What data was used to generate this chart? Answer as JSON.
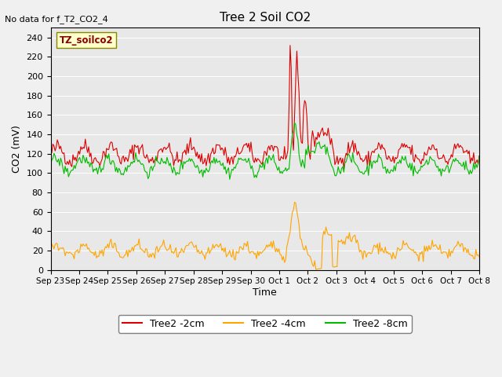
{
  "title": "Tree 2 Soil CO2",
  "top_left_text": "No data for f_T2_CO2_4",
  "ylabel": "CO2 (mV)",
  "xlabel": "Time",
  "box_label": "TZ_soilco2",
  "ylim": [
    0,
    250
  ],
  "yticks": [
    0,
    20,
    40,
    60,
    80,
    100,
    120,
    140,
    160,
    180,
    200,
    220,
    240
  ],
  "xtick_labels": [
    "Sep 23",
    "Sep 24",
    "Sep 25",
    "Sep 26",
    "Sep 27",
    "Sep 28",
    "Sep 29",
    "Sep 30",
    "Oct 1",
    "Oct 2",
    "Oct 3",
    "Oct 4",
    "Oct 5",
    "Oct 6",
    "Oct 7",
    "Oct 8"
  ],
  "colors": {
    "red": "#dd0000",
    "orange": "#ffa500",
    "green": "#00bb00",
    "background": "#e8e8e8",
    "box_fill": "#ffffcc",
    "box_edge": "#aaaaaa"
  },
  "legend_labels": [
    "Tree2 -2cm",
    "Tree2 -4cm",
    "Tree2 -8cm"
  ]
}
